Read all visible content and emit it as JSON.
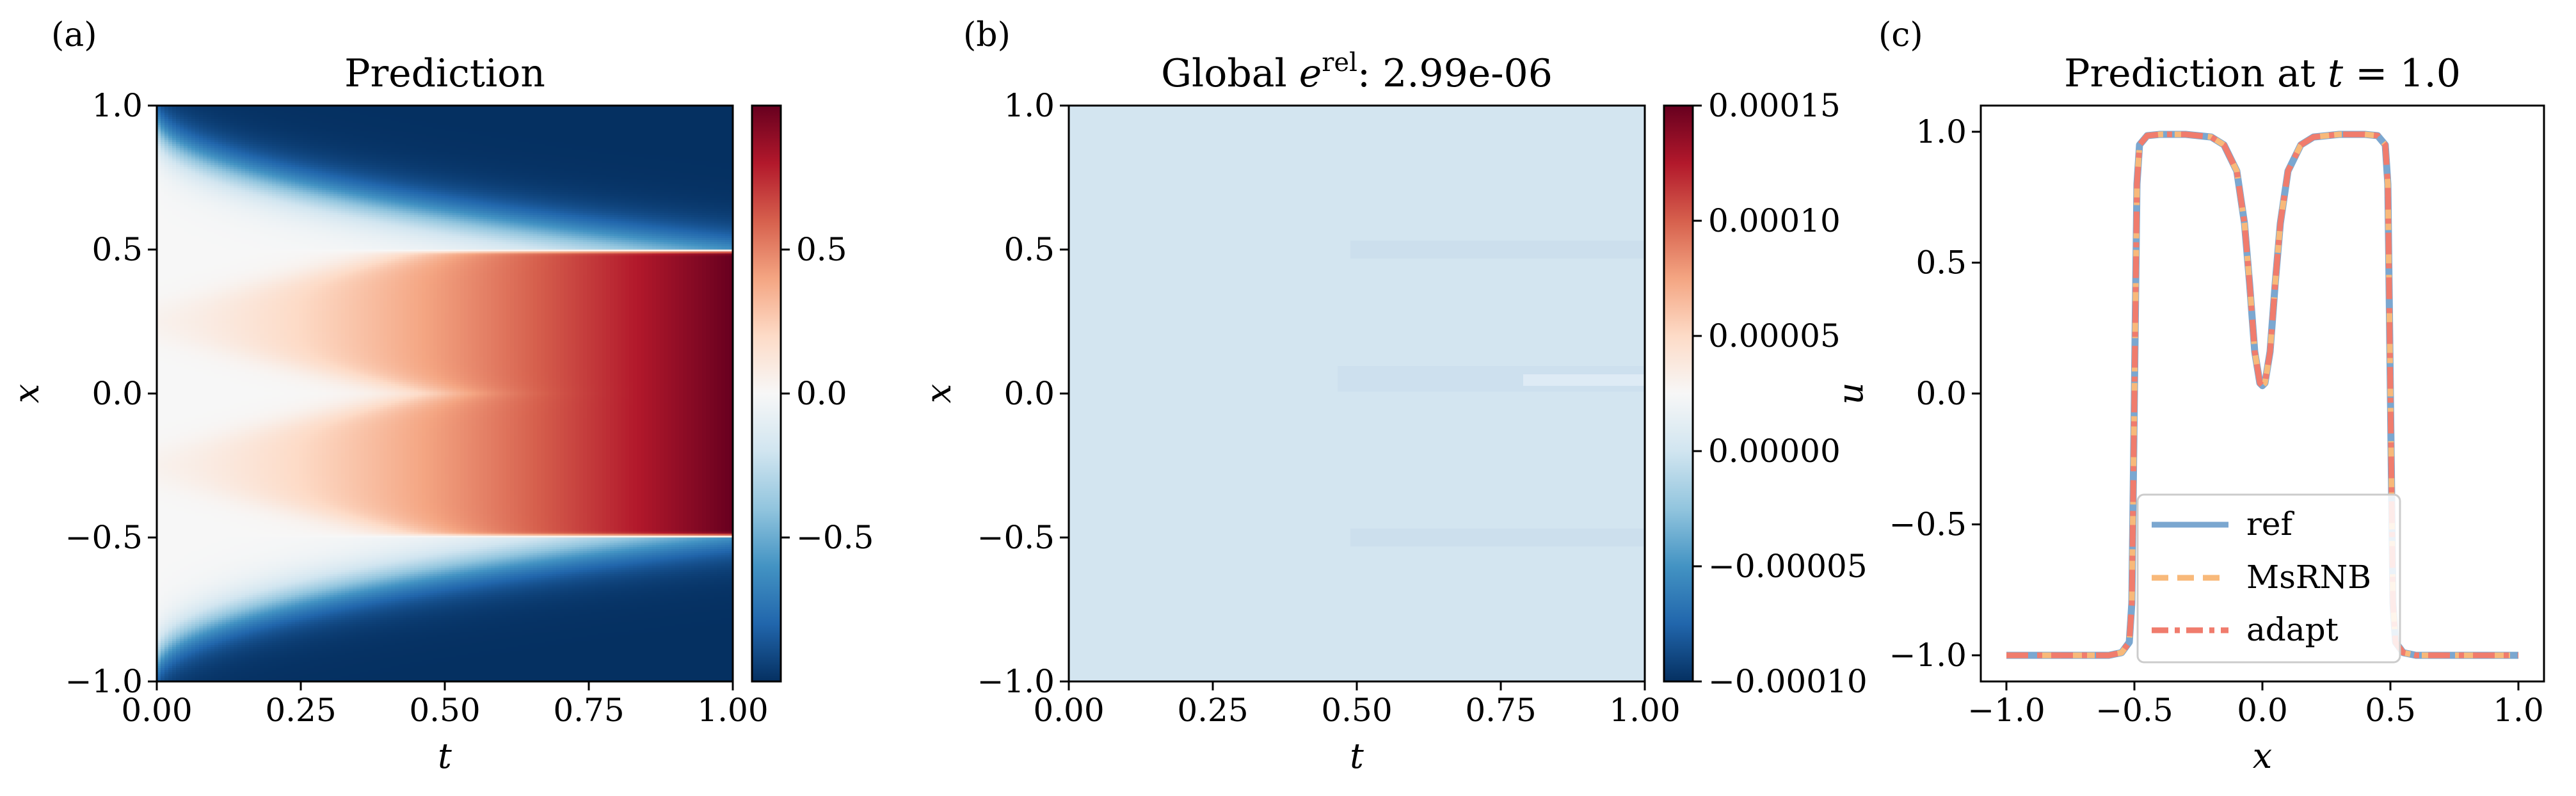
{
  "chart_data": [
    {
      "type": "heatmap",
      "panel_label": "(a)",
      "title": "Prediction",
      "xlabel": "t",
      "ylabel": "x",
      "xlim": [
        0.0,
        1.0
      ],
      "ylim": [
        -1.0,
        1.0
      ],
      "x_ticks": [
        "0.00",
        "0.25",
        "0.50",
        "0.75",
        "1.00"
      ],
      "y_ticks": [
        "1.0",
        "0.5",
        "0.0",
        "−0.5",
        "−1.0"
      ],
      "colorbar": {
        "colormap": "RdBu_r",
        "range": [
          -1.0,
          1.0
        ],
        "ticks": [
          "0.5",
          "0.0",
          "−0.5"
        ],
        "tick_values": [
          0.5,
          0.0,
          -0.5
        ]
      },
      "colors": {
        "low": "#053061",
        "mid": "#f7f7f7",
        "high": "#67001f"
      }
    },
    {
      "type": "heatmap",
      "panel_label": "(b)",
      "title_prefix": "Global ",
      "title_symbol": "e",
      "title_superscript": "rel",
      "title_suffix": ": 2.99e-06",
      "xlabel": "t",
      "ylabel": "x",
      "xlim": [
        0.0,
        1.0
      ],
      "ylim": [
        -1.0,
        1.0
      ],
      "x_ticks": [
        "0.00",
        "0.25",
        "0.50",
        "0.75",
        "1.00"
      ],
      "y_ticks": [
        "1.0",
        "0.5",
        "0.0",
        "−0.5",
        "−1.0"
      ],
      "colorbar": {
        "colormap": "RdBu_r",
        "range": [
          -0.0001,
          0.00015
        ],
        "ticks": [
          "0.00015",
          "0.00010",
          "0.00005",
          "0.00000",
          "−0.00005",
          "−0.00010"
        ],
        "tick_values": [
          0.00015,
          0.0001,
          5e-05,
          0.0,
          -5e-05,
          -0.0001
        ]
      },
      "field_value": 0.0,
      "field_color": "#d3e5f0"
    },
    {
      "type": "line",
      "panel_label": "(c)",
      "title_prefix": "Prediction at ",
      "title_symbol": "t",
      "title_suffix": " = 1.0",
      "xlabel": "x",
      "ylabel": "u",
      "xlim": [
        -1.1,
        1.1
      ],
      "ylim": [
        -1.1,
        1.1
      ],
      "x_ticks": [
        "−1.0",
        "−0.5",
        "0.0",
        "0.5",
        "1.0"
      ],
      "x_tick_values": [
        -1.0,
        -0.5,
        0.0,
        0.5,
        1.0
      ],
      "y_ticks": [
        "1.0",
        "0.5",
        "0.0",
        "−0.5",
        "−1.0"
      ],
      "y_tick_values": [
        1.0,
        0.5,
        0.0,
        -0.5,
        -1.0
      ],
      "legend_position": "lower-center",
      "series": [
        {
          "name": "ref",
          "color": "#7ba7d0",
          "style": "solid"
        },
        {
          "name": "MsRNB",
          "color": "#f8b97a",
          "style": "dashed"
        },
        {
          "name": "adapt",
          "color": "#f07c6d",
          "style": "dashdot"
        }
      ],
      "x": [
        -1.0,
        -0.9,
        -0.8,
        -0.7,
        -0.6,
        -0.55,
        -0.52,
        -0.51,
        -0.5,
        -0.49,
        -0.48,
        -0.45,
        -0.4,
        -0.3,
        -0.2,
        -0.15,
        -0.1,
        -0.07,
        -0.05,
        -0.03,
        -0.01,
        0.0,
        0.01,
        0.03,
        0.05,
        0.07,
        0.1,
        0.15,
        0.2,
        0.3,
        0.4,
        0.45,
        0.48,
        0.49,
        0.5,
        0.51,
        0.52,
        0.55,
        0.6,
        0.7,
        0.8,
        0.9,
        1.0
      ],
      "y": [
        -1.0,
        -1.0,
        -1.0,
        -1.0,
        -1.0,
        -0.99,
        -0.95,
        -0.8,
        0.0,
        0.8,
        0.95,
        0.985,
        0.99,
        0.99,
        0.98,
        0.95,
        0.85,
        0.65,
        0.42,
        0.16,
        0.04,
        0.03,
        0.04,
        0.16,
        0.42,
        0.65,
        0.85,
        0.95,
        0.98,
        0.99,
        0.99,
        0.985,
        0.95,
        0.8,
        0.0,
        -0.8,
        -0.95,
        -0.99,
        -1.0,
        -1.0,
        -1.0,
        -1.0,
        -1.0
      ]
    }
  ]
}
